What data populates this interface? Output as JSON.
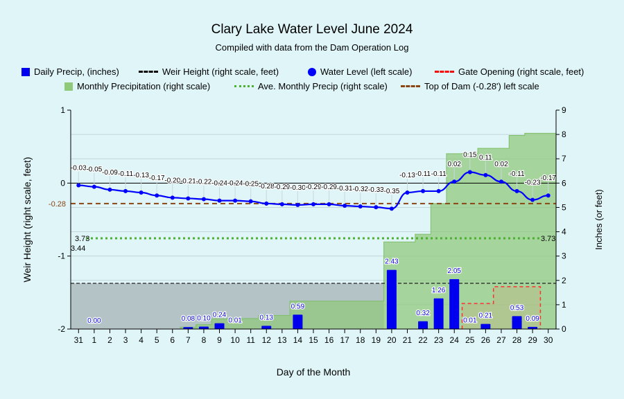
{
  "chart_data": {
    "type": "bar",
    "title": "Clary Lake Water Level June 2024",
    "subtitle": "Compiled with data from the Dam Operation Log",
    "xlabel": "Day of the Month",
    "ylabel_left": "Weir Height (right scale, feet)",
    "ylabel_right": "Inches (or feet)",
    "ylim_left": [
      -2,
      1
    ],
    "ylim_right": [
      0,
      9
    ],
    "left_ticks": [
      "1",
      "0",
      "-1",
      "-2"
    ],
    "right_ticks": [
      "0",
      "1",
      "2",
      "3",
      "4",
      "5",
      "6",
      "7",
      "8",
      "9"
    ],
    "categories": [
      "31",
      "1",
      "2",
      "3",
      "4",
      "5",
      "6",
      "7",
      "8",
      "9",
      "10",
      "11",
      "12",
      "13",
      "14",
      "15",
      "16",
      "17",
      "18",
      "19",
      "20",
      "21",
      "22",
      "23",
      "24",
      "25",
      "26",
      "27",
      "28",
      "29",
      "30"
    ],
    "legend": [
      {
        "label": "Daily Precip, (inches)",
        "color": "#0000ee"
      },
      {
        "label": "Weir Height (right scale, feet)",
        "color": "#000000"
      },
      {
        "label": "Water Level (left scale)",
        "color": "#0000ff"
      },
      {
        "label": "Gate Opening (right scale, feet)",
        "color": "#ff0000"
      },
      {
        "label": "Monthly Precipitation (right scale)",
        "color": "#8fc97a"
      },
      {
        "label": "Ave. Monthly Precip (right scale)",
        "color": "#4cb030"
      },
      {
        "label": "Top of Dam (-0.28') left scale",
        "color": "#8b4513"
      }
    ],
    "series": [
      {
        "name": "Water Level (left scale)",
        "values": [
          -0.03,
          -0.05,
          -0.09,
          -0.11,
          -0.13,
          -0.17,
          -0.2,
          -0.21,
          -0.22,
          -0.24,
          -0.24,
          -0.25,
          -0.28,
          -0.29,
          -0.3,
          -0.29,
          -0.29,
          -0.31,
          -0.32,
          -0.33,
          -0.35,
          -0.13,
          -0.11,
          -0.11,
          0.02,
          0.15,
          0.11,
          0.02,
          -0.11,
          -0.23,
          -0.17
        ]
      },
      {
        "name": "Daily Precip, (inches)",
        "values": [
          null,
          0.0,
          null,
          null,
          null,
          null,
          null,
          0.08,
          0.1,
          0.24,
          0.01,
          null,
          0.13,
          null,
          0.59,
          null,
          null,
          null,
          null,
          null,
          2.43,
          null,
          0.32,
          1.26,
          2.05,
          0.01,
          0.21,
          null,
          0.53,
          0.09,
          null
        ]
      },
      {
        "name": "Monthly Precipitation (right scale)",
        "values": [
          0,
          0,
          0,
          0,
          0,
          0,
          0,
          0.08,
          0.18,
          0.42,
          0.43,
          0.43,
          0.56,
          0.56,
          1.15,
          1.15,
          1.15,
          1.15,
          1.15,
          1.15,
          3.58,
          3.58,
          3.9,
          5.16,
          7.21,
          7.22,
          7.43,
          7.43,
          7.96,
          8.05,
          8.05
        ]
      },
      {
        "name": "Gate Opening (right scale, feet)",
        "values": [
          null,
          null,
          null,
          null,
          null,
          null,
          null,
          null,
          null,
          null,
          null,
          null,
          null,
          null,
          null,
          null,
          null,
          null,
          null,
          null,
          null,
          null,
          null,
          null,
          null,
          1.05,
          1.05,
          1.74,
          1.74,
          1.74,
          null
        ]
      }
    ],
    "weir_height_right": 1.88,
    "ave_monthly_precip": 3.73,
    "ave_monthly_label": "3.73",
    "top_of_dam": -0.28,
    "top_of_dam_label": "-0.28",
    "extra_label": "3.44"
  }
}
